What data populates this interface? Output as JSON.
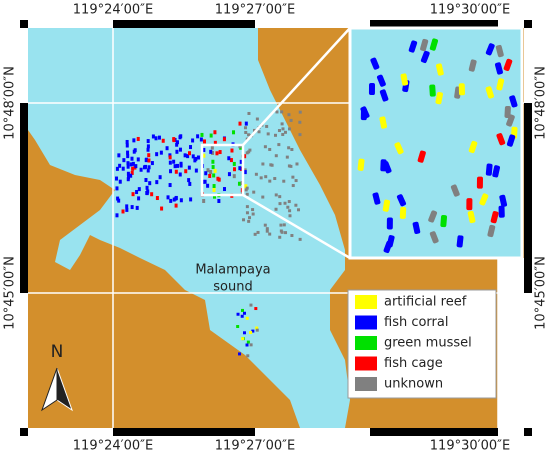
{
  "axes": {
    "top": [
      "119°24′00″E",
      "119°27′00″E",
      "119°30′00″E"
    ],
    "bottom": [
      "119°24′00″E",
      "119°27′00″E",
      "119°30′00″E"
    ],
    "left": [
      "10°48′00″N",
      "10°45′00″N"
    ],
    "right": [
      "10°48′00″N",
      "10°45′00″N"
    ]
  },
  "place_label": [
    "Malampaya",
    "sound"
  ],
  "north_label": "N",
  "legend": [
    {
      "name": "artificial reef",
      "color": "#ffff00"
    },
    {
      "name": "fish corral",
      "color": "#0000ff"
    },
    {
      "name": "green mussel",
      "color": "#00e000"
    },
    {
      "name": "fish cage",
      "color": "#ff0000"
    },
    {
      "name": "unknown",
      "color": "#808080"
    }
  ]
}
